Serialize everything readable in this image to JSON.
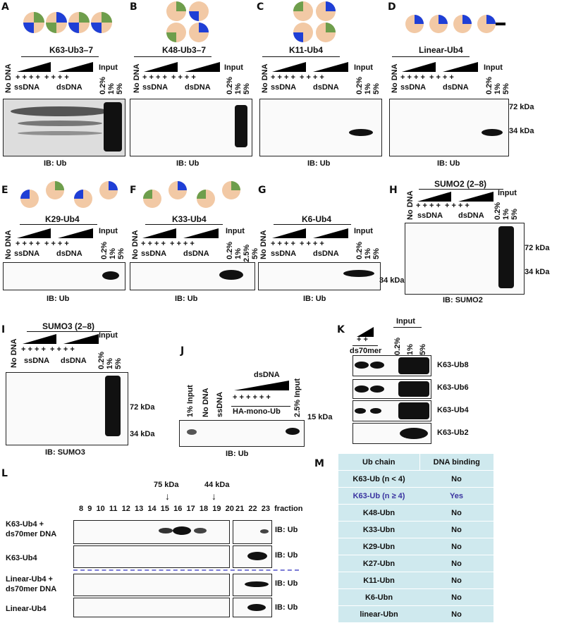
{
  "panels": {
    "A": {
      "letter": "A",
      "title": "K63-Ub3–7",
      "blot": "IB: Ub"
    },
    "B": {
      "letter": "B",
      "title": "K48-Ub3–7",
      "blot": "IB: Ub"
    },
    "C": {
      "letter": "C",
      "title": "K11-Ub4",
      "blot": "IB: Ub"
    },
    "D": {
      "letter": "D",
      "title": "Linear-Ub4",
      "blot": "IB: Ub"
    },
    "E": {
      "letter": "E",
      "title": "K29-Ub4",
      "blot": "IB: Ub"
    },
    "F": {
      "letter": "F",
      "title": "K33-Ub4",
      "blot": "IB: Ub"
    },
    "G": {
      "letter": "G",
      "title": "K6-Ub4",
      "blot": "IB: Ub"
    },
    "H": {
      "letter": "H",
      "title": "SUMO2 (2–8)",
      "blot": "IB: SUMO2"
    },
    "I": {
      "letter": "I",
      "title": "SUMO3 (2–8)",
      "blot": "IB: SUMO3"
    },
    "J": {
      "letter": "J",
      "blot": "IB: Ub"
    },
    "K": {
      "letter": "K"
    },
    "L": {
      "letter": "L"
    },
    "M": {
      "letter": "M"
    }
  },
  "common": {
    "no_dna": "No DNA",
    "ssdna": "ssDNA",
    "dsdna": "dsDNA",
    "input": "Input",
    "p02": "0.2%",
    "p1": "1%",
    "p5": "5%",
    "p25": "2.5%",
    "kda72": "72 kDa",
    "kda34": "34 kDa",
    "kda15": "15 kDa"
  },
  "panelJ": {
    "input1": "1% Input",
    "no_dna": "No DNA",
    "ssdna": "ssDNA",
    "dsdna": "dsDNA",
    "ha": "HA-mono-Ub",
    "input25": "2.5% Input"
  },
  "panelK": {
    "ds70": "ds70mer",
    "input": "Input",
    "rows": [
      "K63-Ub8",
      "K63-Ub6",
      "K63-Ub4",
      "K63-Ub2"
    ]
  },
  "panelL": {
    "kda75": "75 kDa",
    "kda44": "44 kDa",
    "fractions": [
      "8",
      "9",
      "10",
      "11",
      "12",
      "13",
      "14",
      "15",
      "16",
      "17",
      "18",
      "19",
      "20"
    ],
    "fractions2": [
      "21",
      "22",
      "23"
    ],
    "fraction_label": "fraction",
    "rows": [
      "K63-Ub4 +",
      "ds70mer DNA",
      "K63-Ub4",
      "Linear-Ub4 +",
      "ds70mer DNA",
      "Linear-Ub4"
    ],
    "ib": "IB: Ub"
  },
  "table": {
    "headers": [
      "Ub chain",
      "DNA binding"
    ],
    "rows": [
      [
        "K63-Ub (n < 4)",
        "No"
      ],
      [
        "K63-Ub (n ≥ 4)",
        "Yes"
      ],
      [
        "K48-Ubn",
        "No"
      ],
      [
        "K33-Ubn",
        "No"
      ],
      [
        "K29-Ubn",
        "No"
      ],
      [
        "K27-Ubn",
        "No"
      ],
      [
        "K11-Ubn",
        "No"
      ],
      [
        "K6-Ubn",
        "No"
      ],
      [
        "linear-Ubn",
        "No"
      ]
    ]
  },
  "colors": {
    "ub_body": "#f2c9a5",
    "blue": "#1f3fd6",
    "green": "#6e9e4c",
    "table_bg": "#cfe9ee",
    "highlight": "#3a33a0"
  }
}
